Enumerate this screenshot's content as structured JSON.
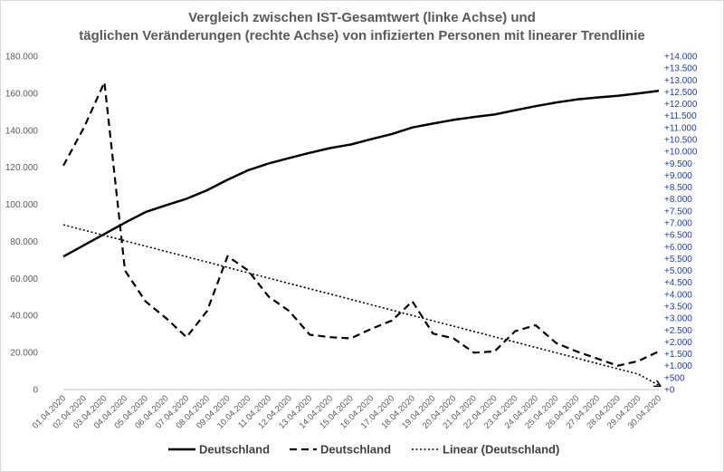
{
  "chart_data": {
    "type": "line",
    "title_line1": "Vergleich zwischen  IST-Gesamtwert (linke Achse) und",
    "title_line2": "täglichen Veränderungen (rechte Achse) von infizierten Personen mit linearer Trendlinie",
    "x": [
      "01.04.2020",
      "02.04.2020",
      "03.04.2020",
      "04.04.2020",
      "05.04.2020",
      "06.04.2020",
      "07.04.2020",
      "08.04.2020",
      "09.04.2020",
      "10.04.2020",
      "11.04.2020",
      "12.04.2020",
      "13.04.2020",
      "14.04.2020",
      "15.04.2020",
      "16.04.2020",
      "17.04.2020",
      "18.04.2020",
      "19.04.2020",
      "20.04.2020",
      "21.04.2020",
      "22.04.2020",
      "23.04.2020",
      "24.04.2020",
      "25.04.2020",
      "26.04.2020",
      "27.04.2020",
      "28.04.2020",
      "29.04.2020",
      "30.04.2020"
    ],
    "y_left": {
      "range": [
        0,
        180000
      ],
      "tick_values": [
        0,
        20000,
        40000,
        60000,
        80000,
        100000,
        120000,
        140000,
        160000,
        180000
      ],
      "tick_labels": [
        "0",
        "20.000",
        "40.000",
        "60.000",
        "80.000",
        "100.000",
        "120.000",
        "140.000",
        "160.000",
        "180.000"
      ]
    },
    "y_right": {
      "range": [
        0,
        14000
      ],
      "tick_values": [
        0,
        500,
        1000,
        1500,
        2000,
        2500,
        3000,
        3500,
        4000,
        4500,
        5000,
        5500,
        6000,
        6500,
        7000,
        7500,
        8000,
        8500,
        9000,
        9500,
        10000,
        10500,
        11000,
        11500,
        12000,
        12500,
        13000,
        13500,
        14000
      ],
      "tick_labels": [
        "+0",
        "+500",
        "+1.000",
        "+1.500",
        "+2.000",
        "+2.500",
        "+3.000",
        "+3.500",
        "+4.000",
        "+4.500",
        "+5.000",
        "+5.500",
        "+6.000",
        "+6.500",
        "+7.000",
        "+7.500",
        "+8.000",
        "+8.500",
        "+9.000",
        "+9.500",
        "+10.000",
        "+10.500",
        "+11.000",
        "+11.500",
        "+12.000",
        "+12.500",
        "+13.000",
        "+13.500",
        "+14.000"
      ]
    },
    "series": [
      {
        "name": "Deutschland",
        "axis": "left",
        "style": "solid",
        "values": [
          71800,
          77900,
          84000,
          90100,
          95800,
          99500,
          103000,
          107600,
          113300,
          118400,
          122100,
          125000,
          127800,
          130400,
          132300,
          135200,
          138000,
          141500,
          143600,
          145600,
          147200,
          148500,
          150800,
          153000,
          155000,
          156600,
          157700,
          158600,
          159900,
          161300
        ]
      },
      {
        "name": "Deutschland",
        "axis": "right",
        "style": "dashed",
        "values": [
          9400,
          11000,
          12900,
          5000,
          3700,
          3000,
          2200,
          3300,
          5600,
          5000,
          3900,
          3300,
          2300,
          2200,
          2150,
          2550,
          2900,
          3700,
          2350,
          2150,
          1550,
          1600,
          2450,
          2700,
          1950,
          1600,
          1300,
          1000,
          1200,
          1600
        ]
      },
      {
        "name": "Linear (Deutschland)",
        "axis": "right",
        "style": "dotted",
        "values": [
          6920,
          6696,
          6472,
          6248,
          6024,
          5800,
          5576,
          5352,
          5128,
          4904,
          4680,
          4456,
          4232,
          4008,
          3784,
          3560,
          3336,
          3112,
          2888,
          2664,
          2440,
          2216,
          1992,
          1768,
          1544,
          1320,
          1096,
          872,
          648,
          180
        ]
      }
    ],
    "legend": {
      "placement": "bottom",
      "entries": [
        "Deutschland",
        "Deutschland",
        "Linear (Deutschland)"
      ]
    },
    "grid": false,
    "colors": {
      "lines": "#000000",
      "left_ticks": "#595959",
      "right_ticks": "#1f3bb3",
      "axis": "#bfbfbf"
    }
  }
}
